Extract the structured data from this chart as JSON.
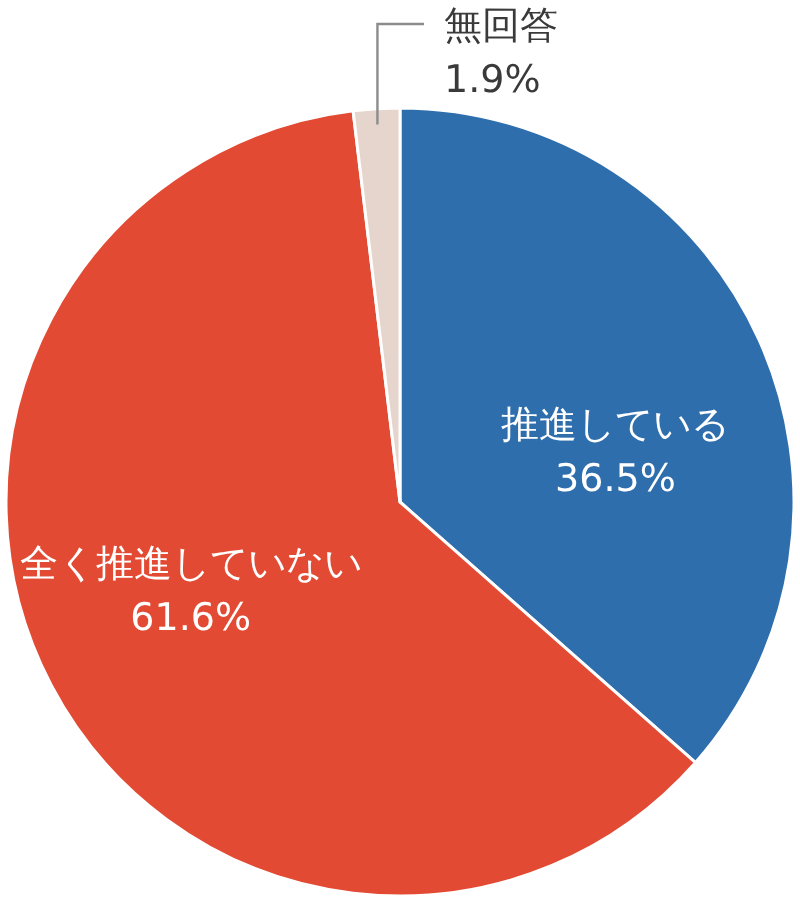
{
  "chart_data": {
    "type": "pie",
    "categories": [
      "推進している",
      "全く推進していない",
      "無回答"
    ],
    "values": [
      36.5,
      61.6,
      1.9
    ],
    "colors": [
      "#2e6ead",
      "#e24a33",
      "#e6d5cc"
    ],
    "value_labels": [
      "36.5%",
      "61.6%",
      "1.9%"
    ]
  }
}
